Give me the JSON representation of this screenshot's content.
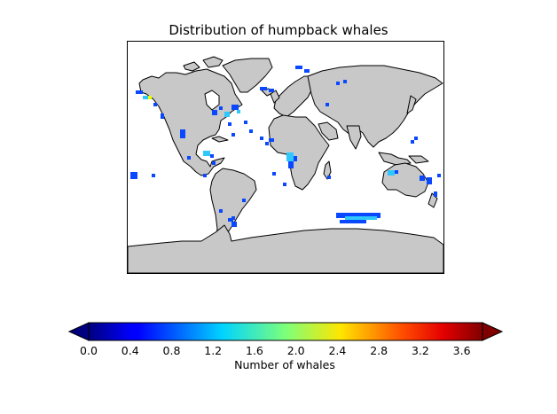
{
  "title": "Distribution of humpback whales",
  "colorbar": {
    "label": "Number of whales",
    "ticks": [
      "0.0",
      "0.4",
      "0.8",
      "1.2",
      "1.6",
      "2.0",
      "2.4",
      "2.8",
      "3.2",
      "3.6"
    ],
    "range": [
      0.0,
      3.8
    ],
    "colormap": "jet",
    "extend": "both"
  },
  "colors": {
    "land": "#c8c8c8",
    "coastline": "#000000",
    "ocean": "#ffffff",
    "observation_low": "#0a48ff",
    "observation_mid": "#2ec8ff",
    "observation_high": "#e8ff00"
  },
  "map": {
    "projection": "cylindrical",
    "lon_range": [
      -180,
      180
    ],
    "lat_range": [
      -90,
      90
    ],
    "observation_regions": [
      {
        "region": "North Atlantic (Gulf of Maine)",
        "level": 1.0
      },
      {
        "region": "Caribbean",
        "level": 0.9
      },
      {
        "region": "West Africa / Gulf of Guinea",
        "level": 1.1
      },
      {
        "region": "Eastern Australia",
        "level": 1.0
      },
      {
        "region": "Southern Ocean (Antarctic Peninsula)",
        "level": 0.6
      },
      {
        "region": "Gulf of Alaska / NE Pacific",
        "level": 0.8
      },
      {
        "region": "Hawaii",
        "level": 0.7
      },
      {
        "region": "Southern Ocean (south of Indian Ocean)",
        "level": 0.7
      }
    ]
  }
}
